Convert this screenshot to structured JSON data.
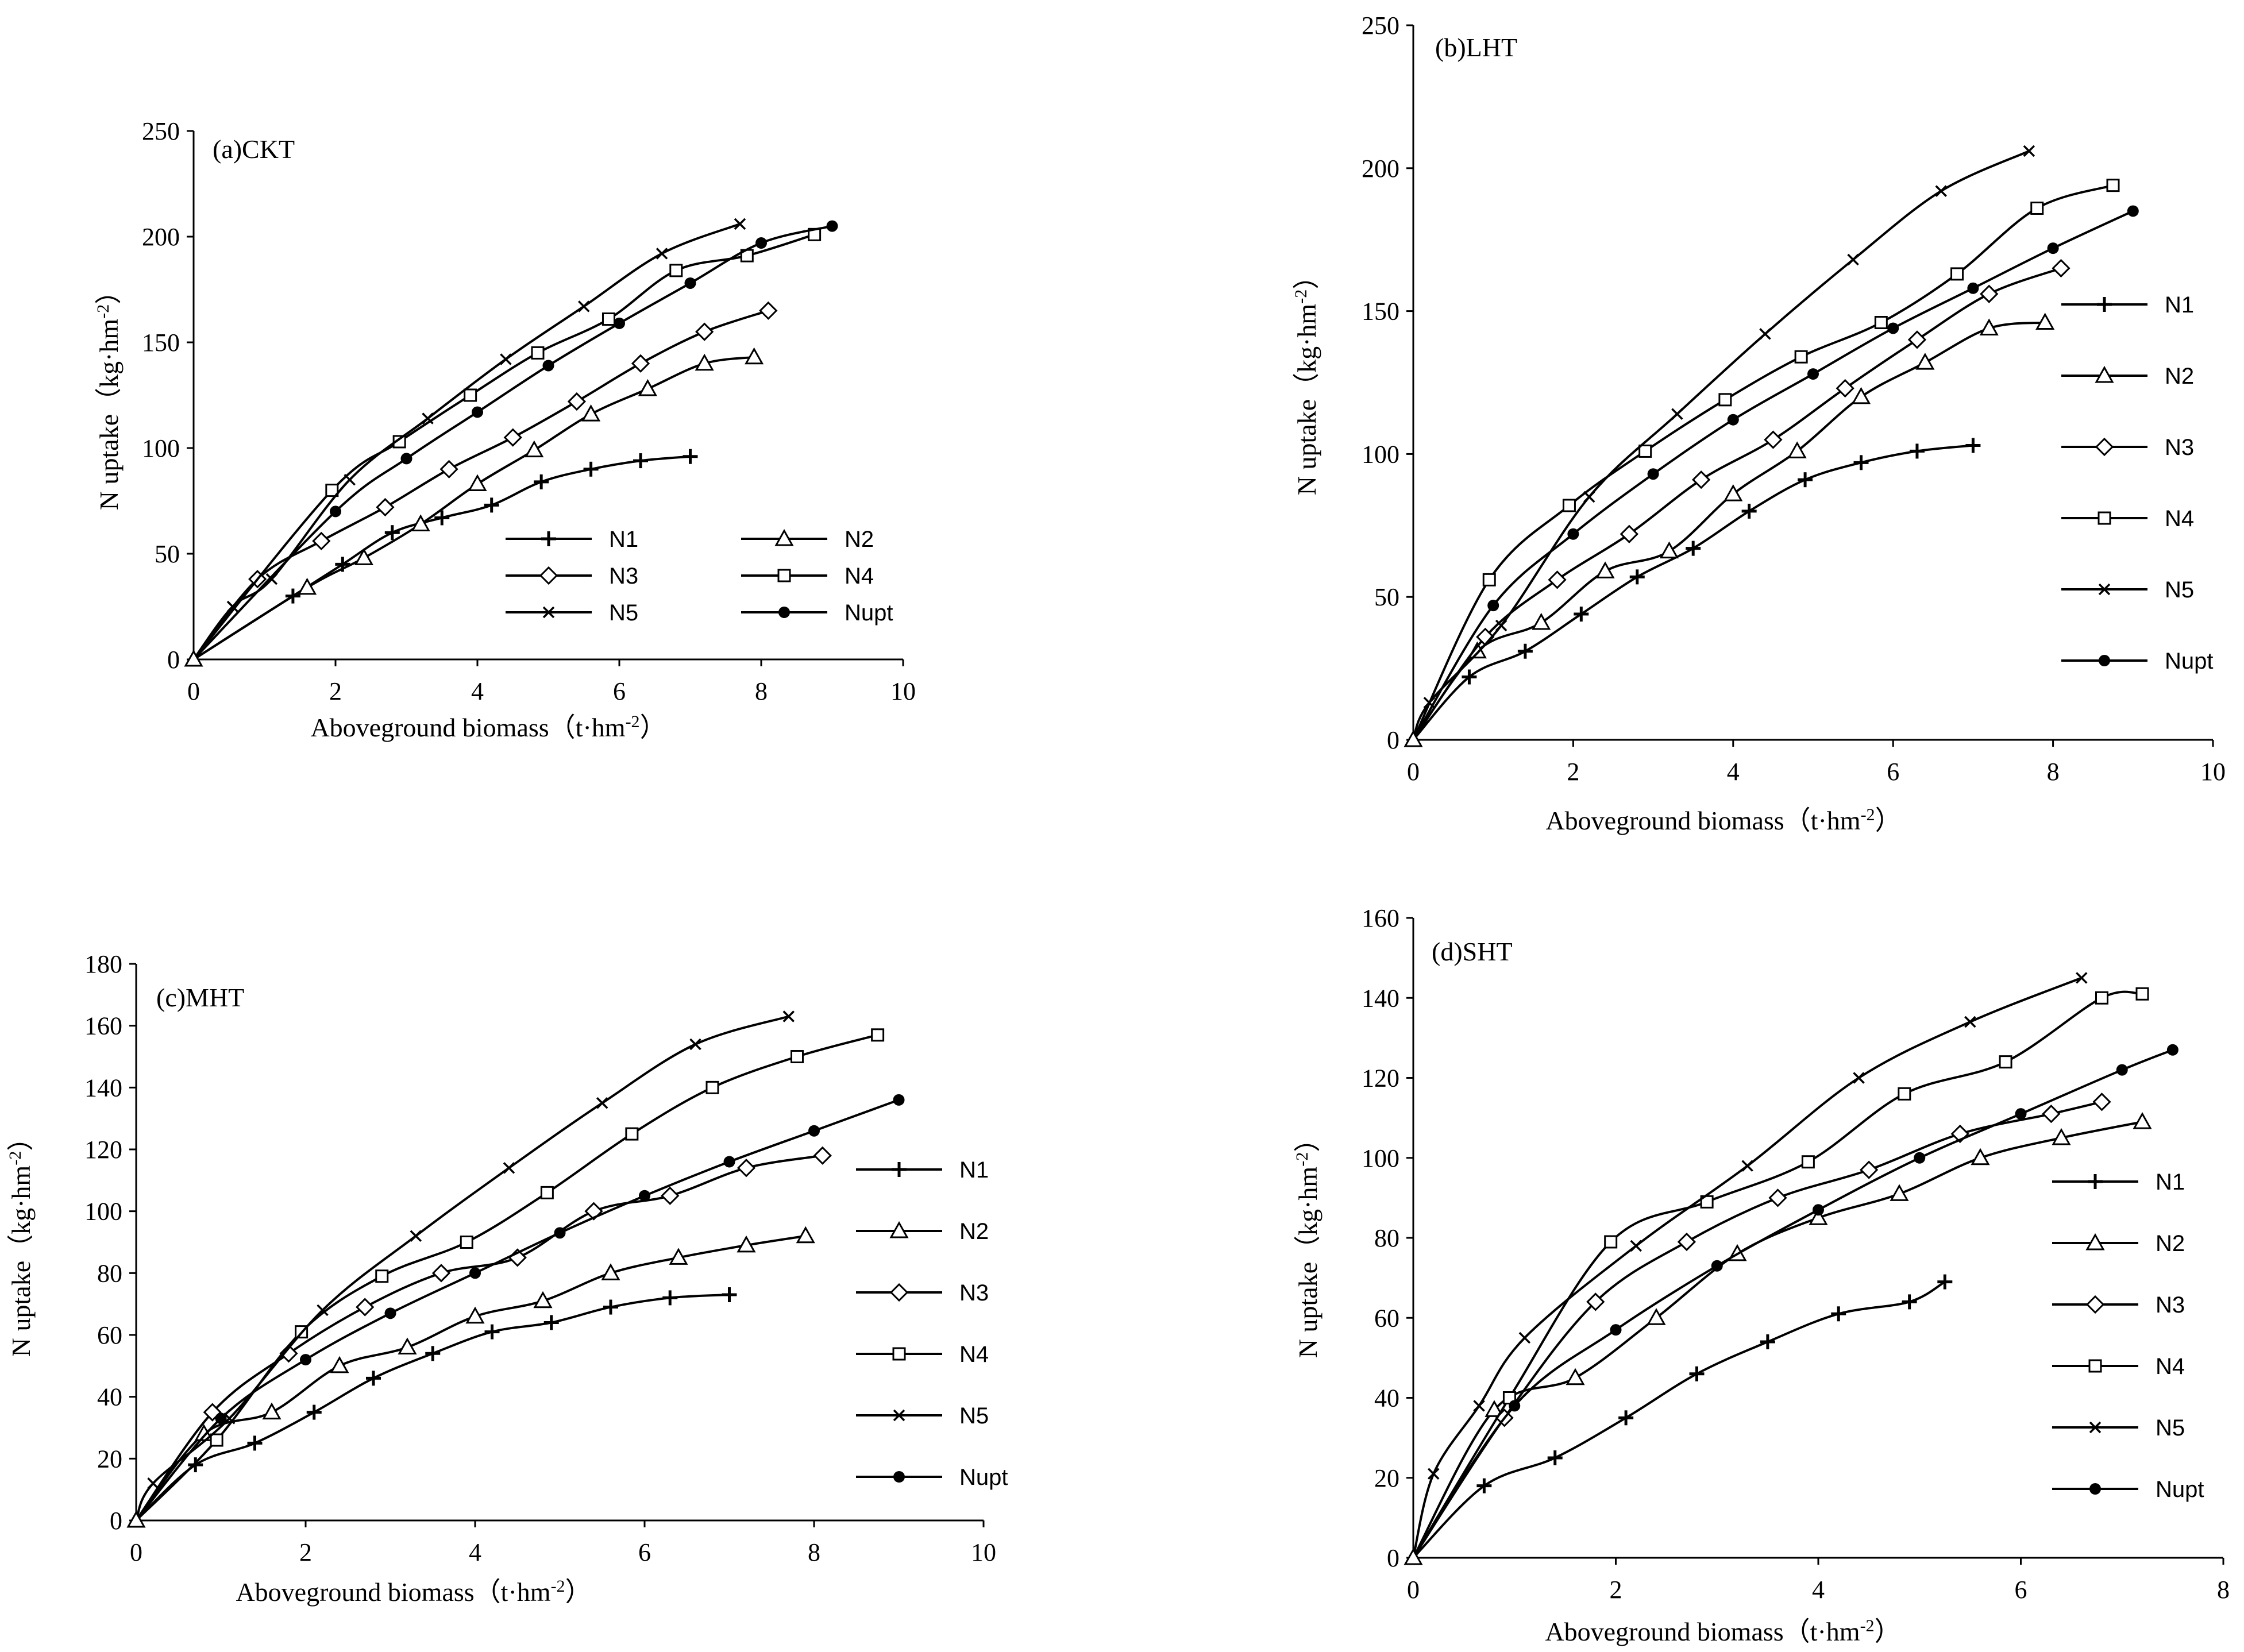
{
  "figure": {
    "colors": {
      "line": "#000000",
      "background": "#ffffff"
    },
    "marker_legend": {
      "N1": "plus",
      "N2": "triangle",
      "N3": "diamond",
      "N4": "square",
      "N5": "x",
      "Nupt": "dot"
    }
  },
  "chart_data": [
    {
      "id": "a",
      "type": "line",
      "title": "(a)CKT",
      "xlabel": "Aboveground biomass（t·hm",
      "xlabel_sup": "-2",
      "xlabel_end": "）",
      "ylabel": "N uptake（kg·hm",
      "ylabel_sup": "-2",
      "ylabel_end": "）",
      "xlim": [
        0,
        10
      ],
      "ylim": [
        0,
        250
      ],
      "xticks": [
        0,
        2,
        4,
        6,
        8,
        10
      ],
      "yticks": [
        0,
        50,
        100,
        150,
        200,
        250
      ],
      "legend_layout": "two-column",
      "series": [
        {
          "name": "N1",
          "marker": "plus",
          "x": [
            0,
            1.4,
            2.1,
            2.8,
            3.5,
            4.2,
            4.9,
            5.6,
            6.3,
            7.0
          ],
          "y": [
            0,
            30,
            45,
            60,
            67,
            73,
            84,
            90,
            94,
            96
          ]
        },
        {
          "name": "N2",
          "marker": "triangle",
          "x": [
            0,
            1.6,
            2.4,
            3.2,
            4.0,
            4.8,
            5.6,
            6.4,
            7.2,
            7.9
          ],
          "y": [
            0,
            34,
            48,
            64,
            83,
            99,
            116,
            128,
            140,
            143
          ]
        },
        {
          "name": "N3",
          "marker": "diamond",
          "x": [
            0,
            0.9,
            1.8,
            2.7,
            3.6,
            4.5,
            5.4,
            6.3,
            7.2,
            8.1
          ],
          "y": [
            0,
            38,
            56,
            72,
            90,
            105,
            122,
            140,
            155,
            165
          ]
        },
        {
          "name": "N4",
          "marker": "square",
          "x": [
            0,
            1.95,
            2.9,
            3.9,
            4.85,
            5.85,
            6.8,
            7.8,
            8.75
          ],
          "y": [
            0,
            80,
            103,
            125,
            145,
            161,
            184,
            191,
            201
          ]
        },
        {
          "name": "N5",
          "marker": "x",
          "x": [
            0,
            0.55,
            1.1,
            2.2,
            3.3,
            4.4,
            5.5,
            6.6,
            7.7
          ],
          "y": [
            0,
            25,
            38,
            85,
            114,
            142,
            167,
            192,
            206
          ]
        },
        {
          "name": "Nupt",
          "marker": "dot",
          "x": [
            0,
            2.0,
            3.0,
            4.0,
            5.0,
            6.0,
            7.0,
            8.0,
            9.0
          ],
          "y": [
            0,
            70,
            95,
            117,
            139,
            159,
            178,
            197,
            205
          ]
        }
      ]
    },
    {
      "id": "b",
      "type": "line",
      "title": "(b)LHT",
      "xlabel": "Aboveground biomass（t·hm",
      "xlabel_sup": "-2",
      "xlabel_end": "）",
      "ylabel": "N uptake（kg·hm",
      "ylabel_sup": "-2",
      "ylabel_end": "）",
      "xlim": [
        0,
        10
      ],
      "ylim": [
        0,
        250
      ],
      "xticks": [
        0,
        2,
        4,
        6,
        8,
        10
      ],
      "yticks": [
        0,
        50,
        100,
        150,
        200,
        250
      ],
      "legend_layout": "one-column",
      "series": [
        {
          "name": "N1",
          "marker": "plus",
          "x": [
            0,
            0.7,
            1.4,
            2.1,
            2.8,
            3.5,
            4.2,
            4.9,
            5.6,
            6.3,
            7.0
          ],
          "y": [
            0,
            22,
            31,
            44,
            57,
            67,
            80,
            91,
            97,
            101,
            103
          ]
        },
        {
          "name": "N2",
          "marker": "triangle",
          "x": [
            0,
            0.8,
            1.6,
            2.4,
            3.2,
            4.0,
            4.8,
            5.6,
            6.4,
            7.2,
            7.9
          ],
          "y": [
            0,
            31,
            41,
            59,
            66,
            86,
            101,
            120,
            132,
            144,
            146
          ]
        },
        {
          "name": "N3",
          "marker": "diamond",
          "x": [
            0,
            0.9,
            1.8,
            2.7,
            3.6,
            4.5,
            5.4,
            6.3,
            7.2,
            8.1
          ],
          "y": [
            0,
            36,
            56,
            72,
            91,
            105,
            123,
            140,
            156,
            165
          ]
        },
        {
          "name": "N4",
          "marker": "square",
          "x": [
            0,
            0.95,
            1.95,
            2.9,
            3.9,
            4.85,
            5.85,
            6.8,
            7.8,
            8.75
          ],
          "y": [
            0,
            56,
            82,
            101,
            119,
            134,
            146,
            163,
            186,
            194
          ]
        },
        {
          "name": "N5",
          "marker": "x",
          "x": [
            0,
            0.2,
            1.1,
            2.2,
            3.3,
            4.4,
            5.5,
            6.6,
            7.7
          ],
          "y": [
            0,
            13,
            40,
            85,
            114,
            142,
            168,
            192,
            206
          ]
        },
        {
          "name": "Nupt",
          "marker": "dot",
          "x": [
            0,
            1.0,
            2.0,
            3.0,
            4.0,
            5.0,
            6.0,
            7.0,
            8.0,
            9.0
          ],
          "y": [
            0,
            47,
            72,
            93,
            112,
            128,
            144,
            158,
            172,
            185
          ]
        }
      ]
    },
    {
      "id": "c",
      "type": "line",
      "title": "(c)MHT",
      "xlabel": "Aboveground biomass（t·hm",
      "xlabel_sup": "-2",
      "xlabel_end": "）",
      "ylabel": "N uptake（kg·hm",
      "ylabel_sup": "-2",
      "ylabel_end": "）",
      "xlim": [
        0,
        10
      ],
      "ylim": [
        0,
        180
      ],
      "xticks": [
        0,
        2,
        4,
        6,
        8,
        10
      ],
      "yticks": [
        0,
        20,
        40,
        60,
        80,
        100,
        120,
        140,
        160,
        180
      ],
      "legend_layout": "one-column",
      "series": [
        {
          "name": "N1",
          "marker": "plus",
          "x": [
            0,
            0.7,
            1.4,
            2.1,
            2.8,
            3.5,
            4.2,
            4.9,
            5.6,
            6.3,
            7.0
          ],
          "y": [
            0,
            18,
            25,
            35,
            46,
            54,
            61,
            64,
            69,
            72,
            73
          ]
        },
        {
          "name": "N2",
          "marker": "triangle",
          "x": [
            0,
            0.8,
            1.6,
            2.4,
            3.2,
            4.0,
            4.8,
            5.6,
            6.4,
            7.2,
            7.9
          ],
          "y": [
            0,
            28,
            35,
            50,
            56,
            66,
            71,
            80,
            85,
            89,
            92
          ]
        },
        {
          "name": "N3",
          "marker": "diamond",
          "x": [
            0,
            0.9,
            1.8,
            2.7,
            3.6,
            4.5,
            5.4,
            6.3,
            7.2,
            8.1
          ],
          "y": [
            0,
            35,
            54,
            69,
            80,
            85,
            100,
            105,
            114,
            118
          ]
        },
        {
          "name": "N4",
          "marker": "square",
          "x": [
            0,
            0.95,
            1.95,
            2.9,
            3.9,
            4.85,
            5.85,
            6.8,
            7.8,
            8.75
          ],
          "y": [
            0,
            26,
            61,
            79,
            90,
            106,
            125,
            140,
            150,
            157
          ]
        },
        {
          "name": "N5",
          "marker": "x",
          "x": [
            0,
            0.2,
            1.1,
            2.2,
            3.3,
            4.4,
            5.5,
            6.6,
            7.7
          ],
          "y": [
            0,
            12,
            33,
            68,
            92,
            114,
            135,
            154,
            163
          ]
        },
        {
          "name": "Nupt",
          "marker": "dot",
          "x": [
            0,
            1.0,
            2.0,
            3.0,
            4.0,
            5.0,
            6.0,
            7.0,
            8.0,
            9.0
          ],
          "y": [
            0,
            33,
            52,
            67,
            80,
            93,
            105,
            116,
            126,
            136
          ]
        }
      ]
    },
    {
      "id": "d",
      "type": "line",
      "title": "(d)SHT",
      "xlabel": "Aboveground biomass（t·hm",
      "xlabel_sup": "-2",
      "xlabel_end": "）",
      "ylabel": "N uptake（kg·hm",
      "ylabel_sup": "-2",
      "ylabel_end": "）",
      "xlim": [
        0,
        8
      ],
      "ylim": [
        0,
        160
      ],
      "xticks": [
        0,
        2,
        4,
        6,
        8
      ],
      "yticks": [
        0,
        20,
        40,
        60,
        80,
        100,
        120,
        140,
        160
      ],
      "legend_layout": "one-column",
      "series": [
        {
          "name": "N1",
          "marker": "plus",
          "x": [
            0,
            0.7,
            1.4,
            2.1,
            2.8,
            3.5,
            4.2,
            4.9,
            5.25
          ],
          "y": [
            0,
            18,
            25,
            35,
            46,
            54,
            61,
            64,
            69
          ]
        },
        {
          "name": "N2",
          "marker": "triangle",
          "x": [
            0,
            0.8,
            1.6,
            2.4,
            3.2,
            4.0,
            4.8,
            5.6,
            6.4,
            7.2
          ],
          "y": [
            0,
            37,
            45,
            60,
            76,
            85,
            91,
            100,
            105,
            109
          ]
        },
        {
          "name": "N3",
          "marker": "diamond",
          "x": [
            0,
            0.9,
            1.8,
            2.7,
            3.6,
            4.5,
            5.4,
            6.3,
            6.8
          ],
          "y": [
            0,
            35,
            64,
            79,
            90,
            97,
            106,
            111,
            114
          ]
        },
        {
          "name": "N4",
          "marker": "square",
          "x": [
            0,
            0.95,
            1.95,
            2.9,
            3.9,
            4.85,
            5.85,
            6.8,
            7.2
          ],
          "y": [
            0,
            40,
            79,
            89,
            99,
            116,
            124,
            140,
            141
          ]
        },
        {
          "name": "N5",
          "marker": "x",
          "x": [
            0,
            0.2,
            0.65,
            1.1,
            2.2,
            3.3,
            4.4,
            5.5,
            6.6
          ],
          "y": [
            0,
            21,
            38,
            55,
            78,
            98,
            120,
            134,
            145
          ]
        },
        {
          "name": "Nupt",
          "marker": "dot",
          "x": [
            0,
            1.0,
            2.0,
            3.0,
            4.0,
            5.0,
            6.0,
            7.0,
            7.5
          ],
          "y": [
            0,
            38,
            57,
            73,
            87,
            100,
            111,
            122,
            127
          ]
        }
      ]
    }
  ]
}
